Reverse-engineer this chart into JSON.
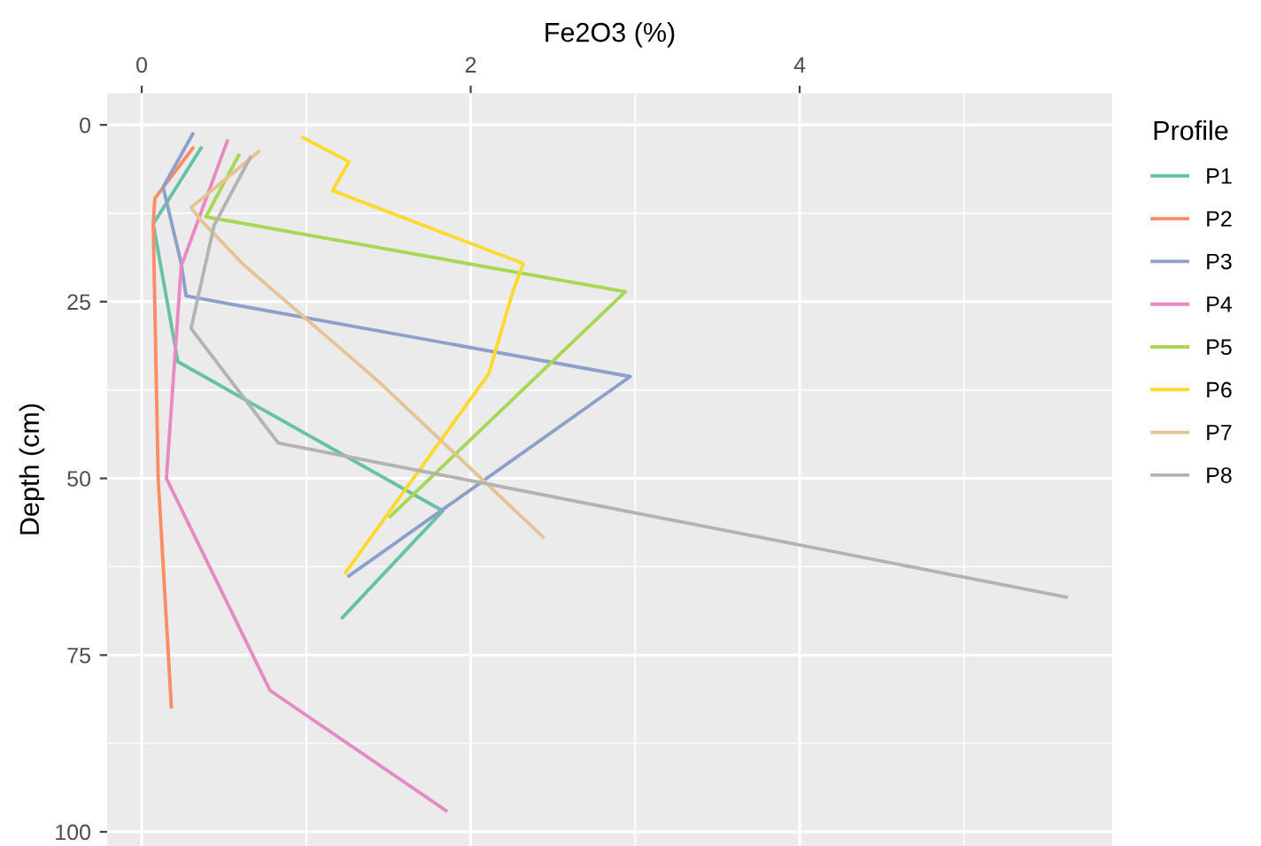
{
  "chart_data": {
    "type": "line",
    "xlabel": "Fe2O3 (%)",
    "ylabel": "Depth (cm)",
    "legend_title": "Profile",
    "legend": "right",
    "grid": true,
    "marker": "none",
    "line_style": "solid",
    "xlim": [
      -0.21,
      5.9
    ],
    "xticks": [
      0,
      2,
      4
    ],
    "ylim": [
      102,
      -4.5
    ],
    "yticks": [
      0,
      25,
      50,
      75,
      100
    ],
    "series": [
      {
        "name": "P1",
        "color": "#66c2a5",
        "x": [
          0.36,
          0.07,
          0.22,
          1.83,
          1.22
        ],
        "values": [
          3.3,
          14,
          33.5,
          54.6,
          69.7
        ]
      },
      {
        "name": "P2",
        "color": "#fc8d62",
        "x": [
          0.31,
          0.08,
          0.07,
          0.1,
          0.18
        ],
        "values": [
          3.3,
          10.4,
          14,
          50,
          82.3
        ]
      },
      {
        "name": "P3",
        "color": "#8da0cb",
        "x": [
          0.31,
          0.13,
          0.24,
          0.27,
          2.97,
          1.26
        ],
        "values": [
          1.3,
          8.8,
          19.6,
          24.2,
          35.6,
          63.8
        ]
      },
      {
        "name": "P4",
        "color": "#e78ac3",
        "x": [
          0.52,
          0.24,
          0.15,
          0.78,
          1.85
        ],
        "values": [
          2.3,
          20,
          50,
          80,
          97
        ]
      },
      {
        "name": "P5",
        "color": "#a6d854",
        "x": [
          0.59,
          0.39,
          2.94,
          1.51
        ],
        "values": [
          4.3,
          13,
          23.6,
          55.4
        ]
      },
      {
        "name": "P6",
        "color": "#ffd92f",
        "x": [
          0.98,
          1.26,
          1.16,
          2.32,
          2.26,
          2.11,
          1.24
        ],
        "values": [
          1.8,
          5.2,
          9.3,
          19.6,
          23.3,
          35.2,
          63.3
        ]
      },
      {
        "name": "P7",
        "color": "#e5c494",
        "x": [
          0.71,
          0.3,
          0.36,
          0.62,
          1.44,
          2.44
        ],
        "values": [
          3.8,
          11.7,
          13.5,
          19.8,
          36.3,
          58.3
        ]
      },
      {
        "name": "P8",
        "color": "#b3b3b3",
        "x": [
          0.66,
          0.44,
          0.3,
          0.83,
          5.62
        ],
        "values": [
          4.6,
          14.2,
          28.8,
          45,
          66.8
        ]
      }
    ]
  }
}
